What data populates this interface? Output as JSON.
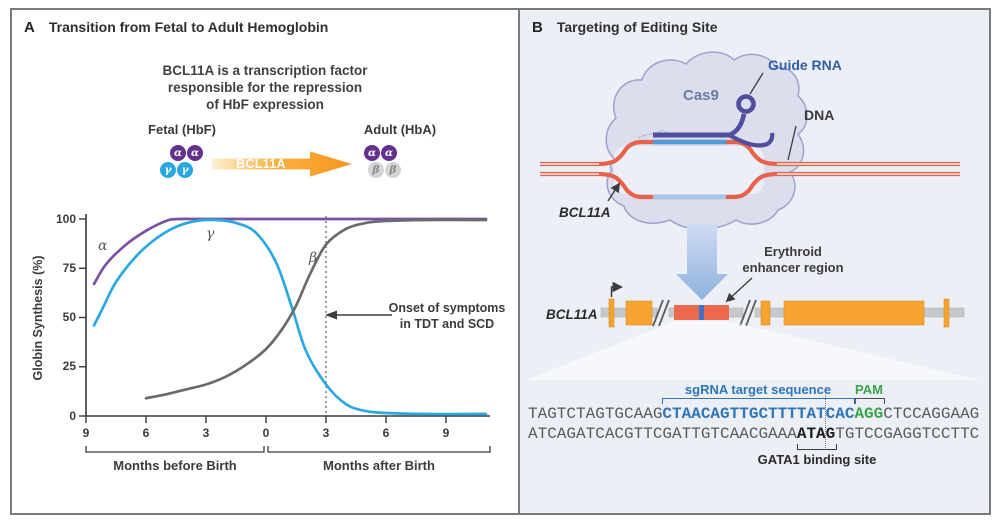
{
  "panelA": {
    "label": "A",
    "title": "Transition from Fetal to Adult Hemoglobin",
    "caption_lines": [
      "BCL11A is a transcription factor",
      "responsible for the repression",
      "of HbF expression"
    ],
    "fetal": {
      "label": "Fetal (HbF)",
      "top": [
        "α",
        "α"
      ],
      "bottom": [
        "γ",
        "γ"
      ]
    },
    "adult": {
      "label": "Adult (HbA)",
      "top": [
        "α",
        "α"
      ],
      "bottom": [
        "β",
        "β"
      ]
    },
    "arrow_label": "BCL11A",
    "chart": {
      "ylabel": "Globin Synthesis (%)",
      "yticks": [
        "100",
        "75",
        "50",
        "25",
        "0"
      ],
      "xticks": [
        "9",
        "6",
        "3",
        "0",
        "3",
        "6",
        "9"
      ],
      "bracket_before": "Months before Birth",
      "bracket_after": "Months after Birth",
      "curve_labels": {
        "alpha": "α",
        "gamma": "γ",
        "beta": "β"
      },
      "annotation_lines": [
        "Onset of symptoms",
        "in TDT and SCD"
      ]
    }
  },
  "chart_data": {
    "type": "line",
    "title": "Transition from Fetal to Adult Hemoglobin",
    "ylabel": "Globin Synthesis (%)",
    "x_unit": "months relative to birth (negative = before birth)",
    "xlim": [
      -9,
      11
    ],
    "ylim": [
      0,
      100
    ],
    "xticks": [
      -9,
      -6,
      -3,
      0,
      3,
      6,
      9
    ],
    "yticks": [
      0,
      25,
      50,
      75,
      100
    ],
    "x_axis_segments": [
      "Months before Birth",
      "Months after Birth"
    ],
    "grid": false,
    "annotations": [
      {
        "text": "Onset of symptoms in TDT and SCD",
        "x": 3,
        "style": "dashed-vertical-line"
      }
    ],
    "series": [
      {
        "id": "alpha",
        "name": "α-globin",
        "color": "#7a52a3",
        "x": [
          -8.6,
          -8,
          -7,
          -6,
          -5,
          -4.4,
          -3,
          0,
          4,
          8,
          11
        ],
        "y": [
          67,
          77,
          87,
          94,
          99,
          100,
          100,
          100,
          100,
          100,
          100
        ]
      },
      {
        "id": "gamma",
        "name": "γ-globin",
        "color": "#2aa9e1",
        "x": [
          -8.6,
          -8.2,
          -7.5,
          -6.5,
          -5.5,
          -4.5,
          -3.5,
          -2.5,
          -1.5,
          -0.5,
          0.5,
          1.3,
          2,
          3,
          4,
          5,
          6,
          8,
          11
        ],
        "y": [
          46,
          54,
          68,
          81,
          90,
          96,
          99,
          99.5,
          98,
          93,
          78,
          55,
          33,
          16,
          6,
          2.5,
          1.5,
          1,
          1
        ]
      },
      {
        "id": "beta",
        "name": "β-globin",
        "color": "#6a6b6e",
        "x": [
          -6,
          -5,
          -4,
          -3,
          -2,
          -1,
          0,
          0.8,
          1.5,
          2.2,
          3,
          4,
          5,
          6,
          8,
          11
        ],
        "y": [
          9,
          11,
          13.5,
          16,
          20,
          26,
          34,
          44,
          56,
          72,
          87,
          95,
          98,
          99,
          99.5,
          99.5
        ]
      }
    ]
  },
  "panelB": {
    "label": "B",
    "title": "Targeting of Editing Site",
    "cas9_label": "Cas9",
    "guide_rna_label": "Guide RNA",
    "dna_label": "DNA",
    "bcl11a_pointer_label": "BCL11A",
    "gene_label": "BCL11A",
    "enhancer_label_lines": [
      "Erythroid",
      "enhancer region"
    ],
    "sequence": {
      "sgrna_label": "sgRNA target sequence",
      "pam_label": "PAM",
      "gata1_label": "GATA1 binding site",
      "top_strand": {
        "pre": "TAGTCTAGTGCAAG",
        "sgrna": "CTAACAGTTGCTTTTATCAC",
        "pam": "AGG",
        "post": "CTCCAGGAAG"
      },
      "bottom_strand": {
        "pre": "ATCAGATCACGTTCGATTGTCAACGAAA",
        "gata1": "ATAG",
        "post": "TGTCCGAGGTCCTTC"
      }
    },
    "colors": {
      "dna_strand": "#e8624b",
      "sgrna_text": "#2e74b6",
      "pam_text": "#3aa648",
      "enhancer": "#ec6950",
      "exon": "#f7a231",
      "guide_rna": "#504e9d",
      "cas9_body": "#dcdeed"
    }
  }
}
